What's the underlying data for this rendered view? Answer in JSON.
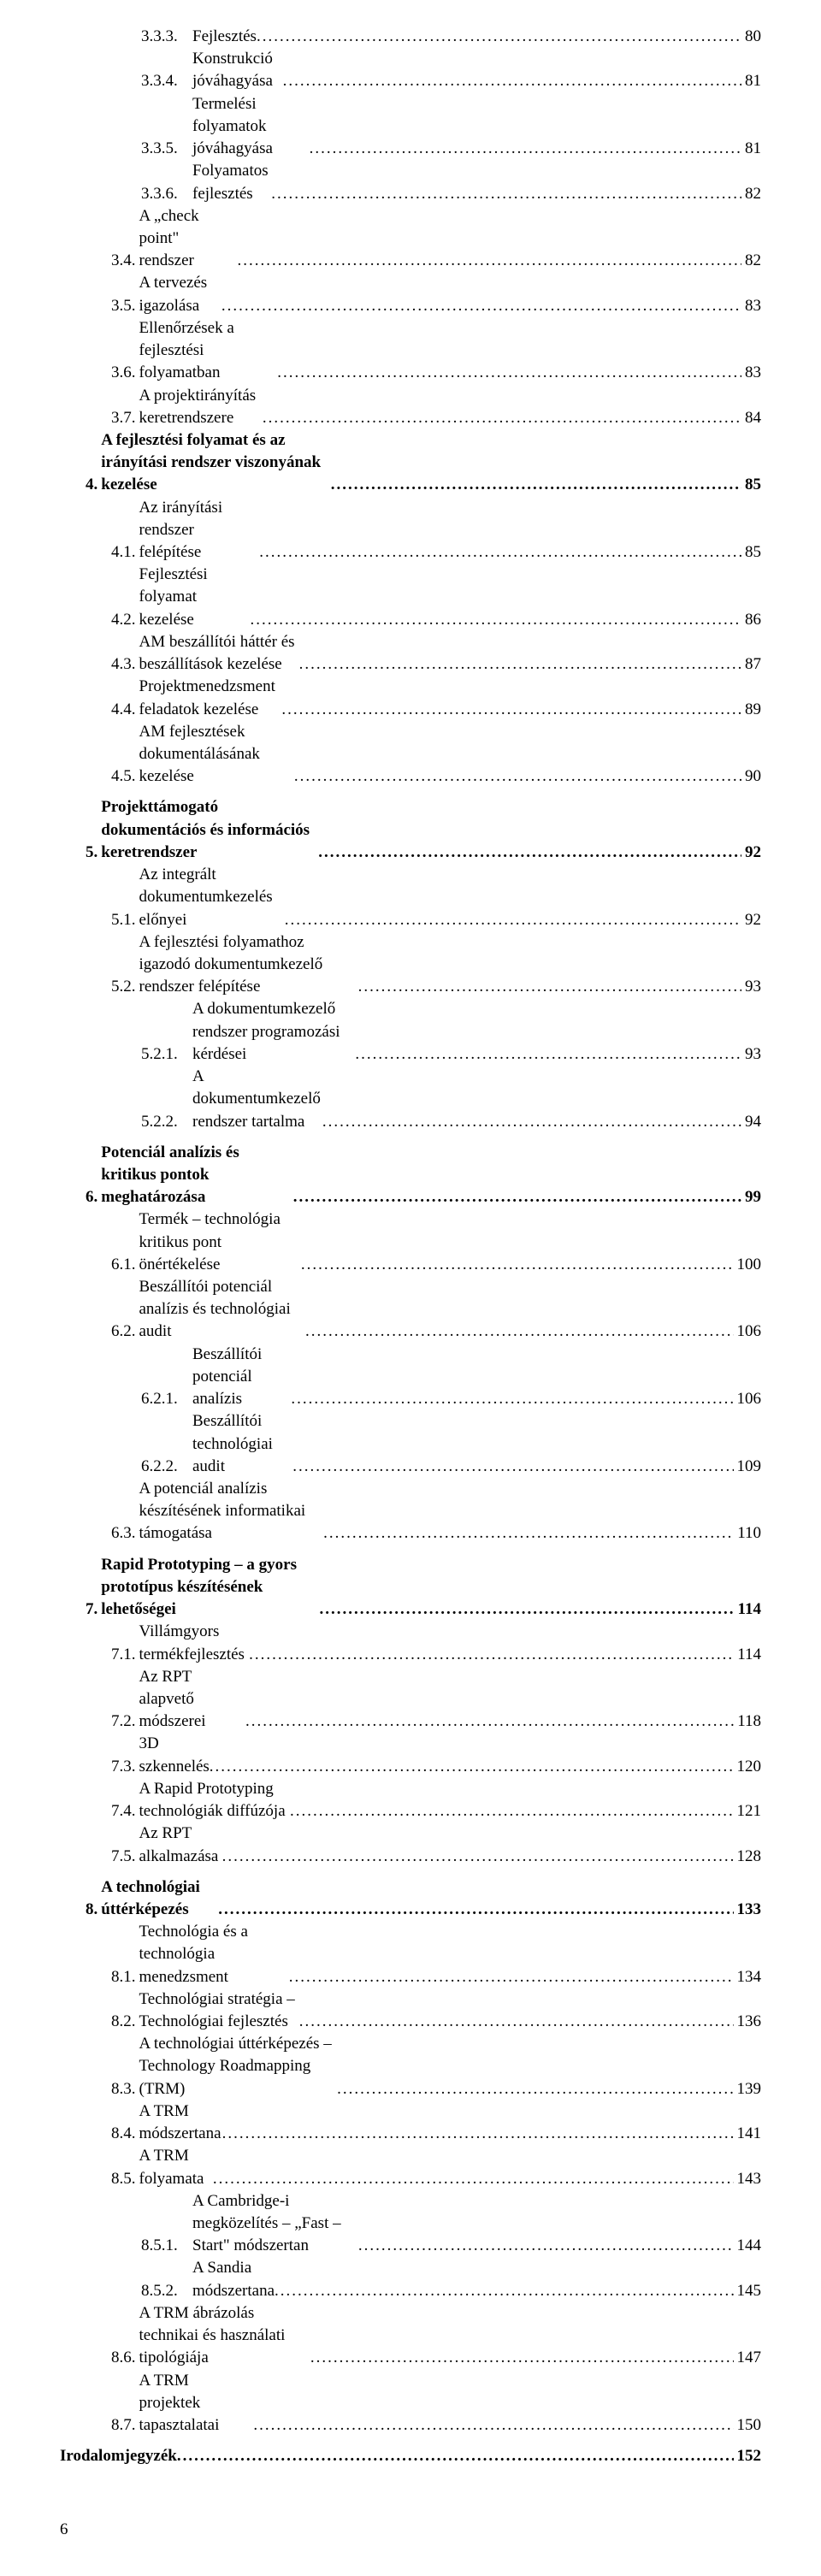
{
  "page_number": "6",
  "toc": [
    {
      "indent": 3,
      "num": "3.3.3.",
      "title": "Fejlesztés",
      "page": "80",
      "bold": false,
      "gap": false
    },
    {
      "indent": 3,
      "num": "3.3.4.",
      "title": "Konstrukció jóváhagyása",
      "page": "81",
      "bold": false,
      "gap": false
    },
    {
      "indent": 3,
      "num": "3.3.5.",
      "title": "Termelési folyamatok jóváhagyása",
      "page": "81",
      "bold": false,
      "gap": false
    },
    {
      "indent": 3,
      "num": "3.3.6.",
      "title": "Folyamatos fejlesztés",
      "page": "82",
      "bold": false,
      "gap": false
    },
    {
      "indent": 2,
      "num": "3.4.",
      "title": "A „check point\" rendszer",
      "page": "82",
      "bold": false,
      "gap": false
    },
    {
      "indent": 2,
      "num": "3.5.",
      "title": "A tervezés igazolása",
      "page": "83",
      "bold": false,
      "gap": false
    },
    {
      "indent": 2,
      "num": "3.6.",
      "title": "Ellenőrzések a fejlesztési folyamatban",
      "page": "83",
      "bold": false,
      "gap": false
    },
    {
      "indent": 2,
      "num": "3.7.",
      "title": "A projektirányítás keretrendszere",
      "page": "84",
      "bold": false,
      "gap": false
    },
    {
      "indent": 1,
      "num": "4.",
      "title": "A fejlesztési folyamat és az irányítási rendszer viszonyának kezelése",
      "page": "85",
      "bold": true,
      "gap": false
    },
    {
      "indent": 2,
      "num": "4.1.",
      "title": "Az irányítási rendszer felépítése",
      "page": "85",
      "bold": false,
      "gap": false
    },
    {
      "indent": 2,
      "num": "4.2.",
      "title": "Fejlesztési folyamat kezelése",
      "page": "86",
      "bold": false,
      "gap": false
    },
    {
      "indent": 2,
      "num": "4.3.",
      "title": "AM beszállítói háttér és beszállítások kezelése",
      "page": "87",
      "bold": false,
      "gap": false
    },
    {
      "indent": 2,
      "num": "4.4.",
      "title": "Projektmenedzsment feladatok kezelése",
      "page": "89",
      "bold": false,
      "gap": false
    },
    {
      "indent": 2,
      "num": "4.5.",
      "title": "AM fejlesztések dokumentálásának kezelése",
      "page": "90",
      "bold": false,
      "gap": false
    },
    {
      "indent": 1,
      "num": "5.",
      "title": "Projekttámogató dokumentációs és információs keretrendszer",
      "page": "92",
      "bold": true,
      "gap": true
    },
    {
      "indent": 2,
      "num": "5.1.",
      "title": "Az integrált dokumentumkezelés előnyei",
      "page": "92",
      "bold": false,
      "gap": false
    },
    {
      "indent": 2,
      "num": "5.2.",
      "title": "A fejlesztési folyamathoz igazodó dokumentumkezelő rendszer felépítése",
      "page": "93",
      "bold": false,
      "gap": false
    },
    {
      "indent": 3,
      "num": "5.2.1.",
      "title": "A dokumentumkezelő rendszer programozási kérdései",
      "page": "93",
      "bold": false,
      "gap": false
    },
    {
      "indent": 3,
      "num": "5.2.2.",
      "title": "A dokumentumkezelő rendszer tartalma",
      "page": "94",
      "bold": false,
      "gap": false
    },
    {
      "indent": 1,
      "num": "6.",
      "title": "Potenciál analízis és kritikus pontok meghatározása",
      "page": "99",
      "bold": true,
      "gap": true
    },
    {
      "indent": 2,
      "num": "6.1.",
      "title": "Termék – technológia kritikus pont önértékelése",
      "page": "100",
      "bold": false,
      "gap": false
    },
    {
      "indent": 2,
      "num": "6.2.",
      "title": "Beszállítói potenciál analízis és technológiai audit",
      "page": "106",
      "bold": false,
      "gap": false
    },
    {
      "indent": 3,
      "num": "6.2.1.",
      "title": "Beszállítói potenciál analízis",
      "page": "106",
      "bold": false,
      "gap": false
    },
    {
      "indent": 3,
      "num": "6.2.2.",
      "title": "Beszállítói technológiai audit",
      "page": "109",
      "bold": false,
      "gap": false
    },
    {
      "indent": 2,
      "num": "6.3.",
      "title": "A potenciál analízis készítésének informatikai támogatása",
      "page": "110",
      "bold": false,
      "gap": false
    },
    {
      "indent": 1,
      "num": "7.",
      "title": "Rapid Prototyping – a gyors prototípus készítésének lehetőségei",
      "page": "114",
      "bold": true,
      "gap": true
    },
    {
      "indent": 2,
      "num": "7.1.",
      "title": "Villámgyors termékfejlesztés",
      "page": "114",
      "bold": false,
      "gap": false
    },
    {
      "indent": 2,
      "num": "7.2.",
      "title": "Az RPT alapvető módszerei",
      "page": "118",
      "bold": false,
      "gap": false
    },
    {
      "indent": 2,
      "num": "7.3.",
      "title": "3D szkennelés",
      "page": "120",
      "bold": false,
      "gap": false
    },
    {
      "indent": 2,
      "num": "7.4.",
      "title": "A Rapid Prototyping technológiák diffúzója",
      "page": "121",
      "bold": false,
      "gap": false
    },
    {
      "indent": 2,
      "num": "7.5.",
      "title": "Az RPT alkalmazása",
      "page": "128",
      "bold": false,
      "gap": false
    },
    {
      "indent": 1,
      "num": "8.",
      "title": "A technológiai úttérképezés",
      "page": "133",
      "bold": true,
      "gap": true
    },
    {
      "indent": 2,
      "num": "8.1.",
      "title": "Technológia és a technológia menedzsment",
      "page": "134",
      "bold": false,
      "gap": false
    },
    {
      "indent": 2,
      "num": "8.2.",
      "title": "Technológiai stratégia – Technológiai fejlesztés",
      "page": "136",
      "bold": false,
      "gap": false
    },
    {
      "indent": 2,
      "num": "8.3.",
      "title": "A technológiai úttérképezés – Technology Roadmapping (TRM)",
      "page": "139",
      "bold": false,
      "gap": false
    },
    {
      "indent": 2,
      "num": "8.4.",
      "title": "A TRM módszertana",
      "page": "141",
      "bold": false,
      "gap": false
    },
    {
      "indent": 2,
      "num": "8.5.",
      "title": "A TRM folyamata",
      "page": "143",
      "bold": false,
      "gap": false
    },
    {
      "indent": 3,
      "num": "8.5.1.",
      "title": "A Cambridge-i megközelítés – „Fast – Start\" módszertan",
      "page": "144",
      "bold": false,
      "gap": false
    },
    {
      "indent": 3,
      "num": "8.5.2.",
      "title": "A Sandia módszertana",
      "page": "145",
      "bold": false,
      "gap": false
    },
    {
      "indent": 2,
      "num": "8.6.",
      "title": "A TRM ábrázolás technikai és használati tipológiája",
      "page": "147",
      "bold": false,
      "gap": false
    },
    {
      "indent": 2,
      "num": "8.7.",
      "title": "A TRM projektek tapasztalatai",
      "page": "150",
      "bold": false,
      "gap": false
    },
    {
      "indent": 0,
      "num": "",
      "title": "Irodalomjegyzék",
      "page": "152",
      "bold": true,
      "gap": true
    }
  ]
}
